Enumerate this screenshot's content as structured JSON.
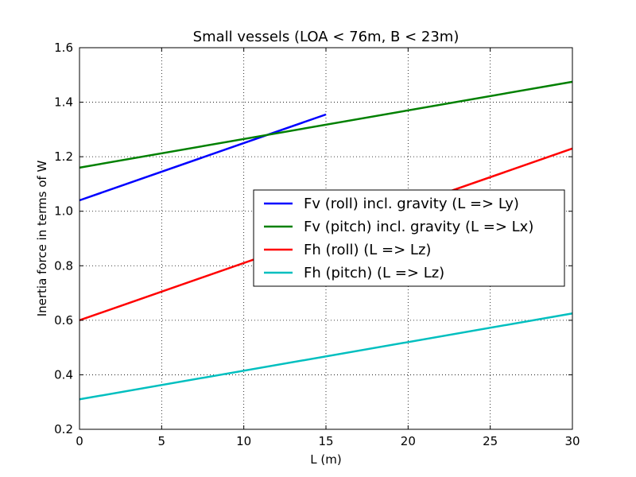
{
  "chart_data": {
    "type": "line",
    "title": "Small vessels (LOA < 76m, B < 23m)",
    "xlabel": "L (m)",
    "ylabel": "Inertia force in terms of W",
    "xlim": [
      0,
      30
    ],
    "ylim": [
      0.2,
      1.6
    ],
    "xticks": [
      "0",
      "5",
      "10",
      "15",
      "20",
      "25",
      "30"
    ],
    "yticks": [
      "0.2",
      "0.4",
      "0.6",
      "0.8",
      "1.0",
      "1.2",
      "1.4",
      "1.6"
    ],
    "grid": true,
    "legend_position": "center-right",
    "series": [
      {
        "name": "Fv (roll) incl. gravity (L => Ly)",
        "color": "#0000ff",
        "x": [
          0,
          15
        ],
        "y": [
          1.04,
          1.355
        ]
      },
      {
        "name": "Fv (pitch) incl. gravity (L => Lx)",
        "color": "#008000",
        "x": [
          0,
          30
        ],
        "y": [
          1.16,
          1.475
        ]
      },
      {
        "name": "Fh (roll) (L => Lz)",
        "color": "#ff0000",
        "x": [
          0,
          30
        ],
        "y": [
          0.6,
          1.23
        ]
      },
      {
        "name": "Fh (pitch) (L => Lz)",
        "color": "#00bfbf",
        "x": [
          0,
          30
        ],
        "y": [
          0.31,
          0.625
        ]
      }
    ]
  }
}
